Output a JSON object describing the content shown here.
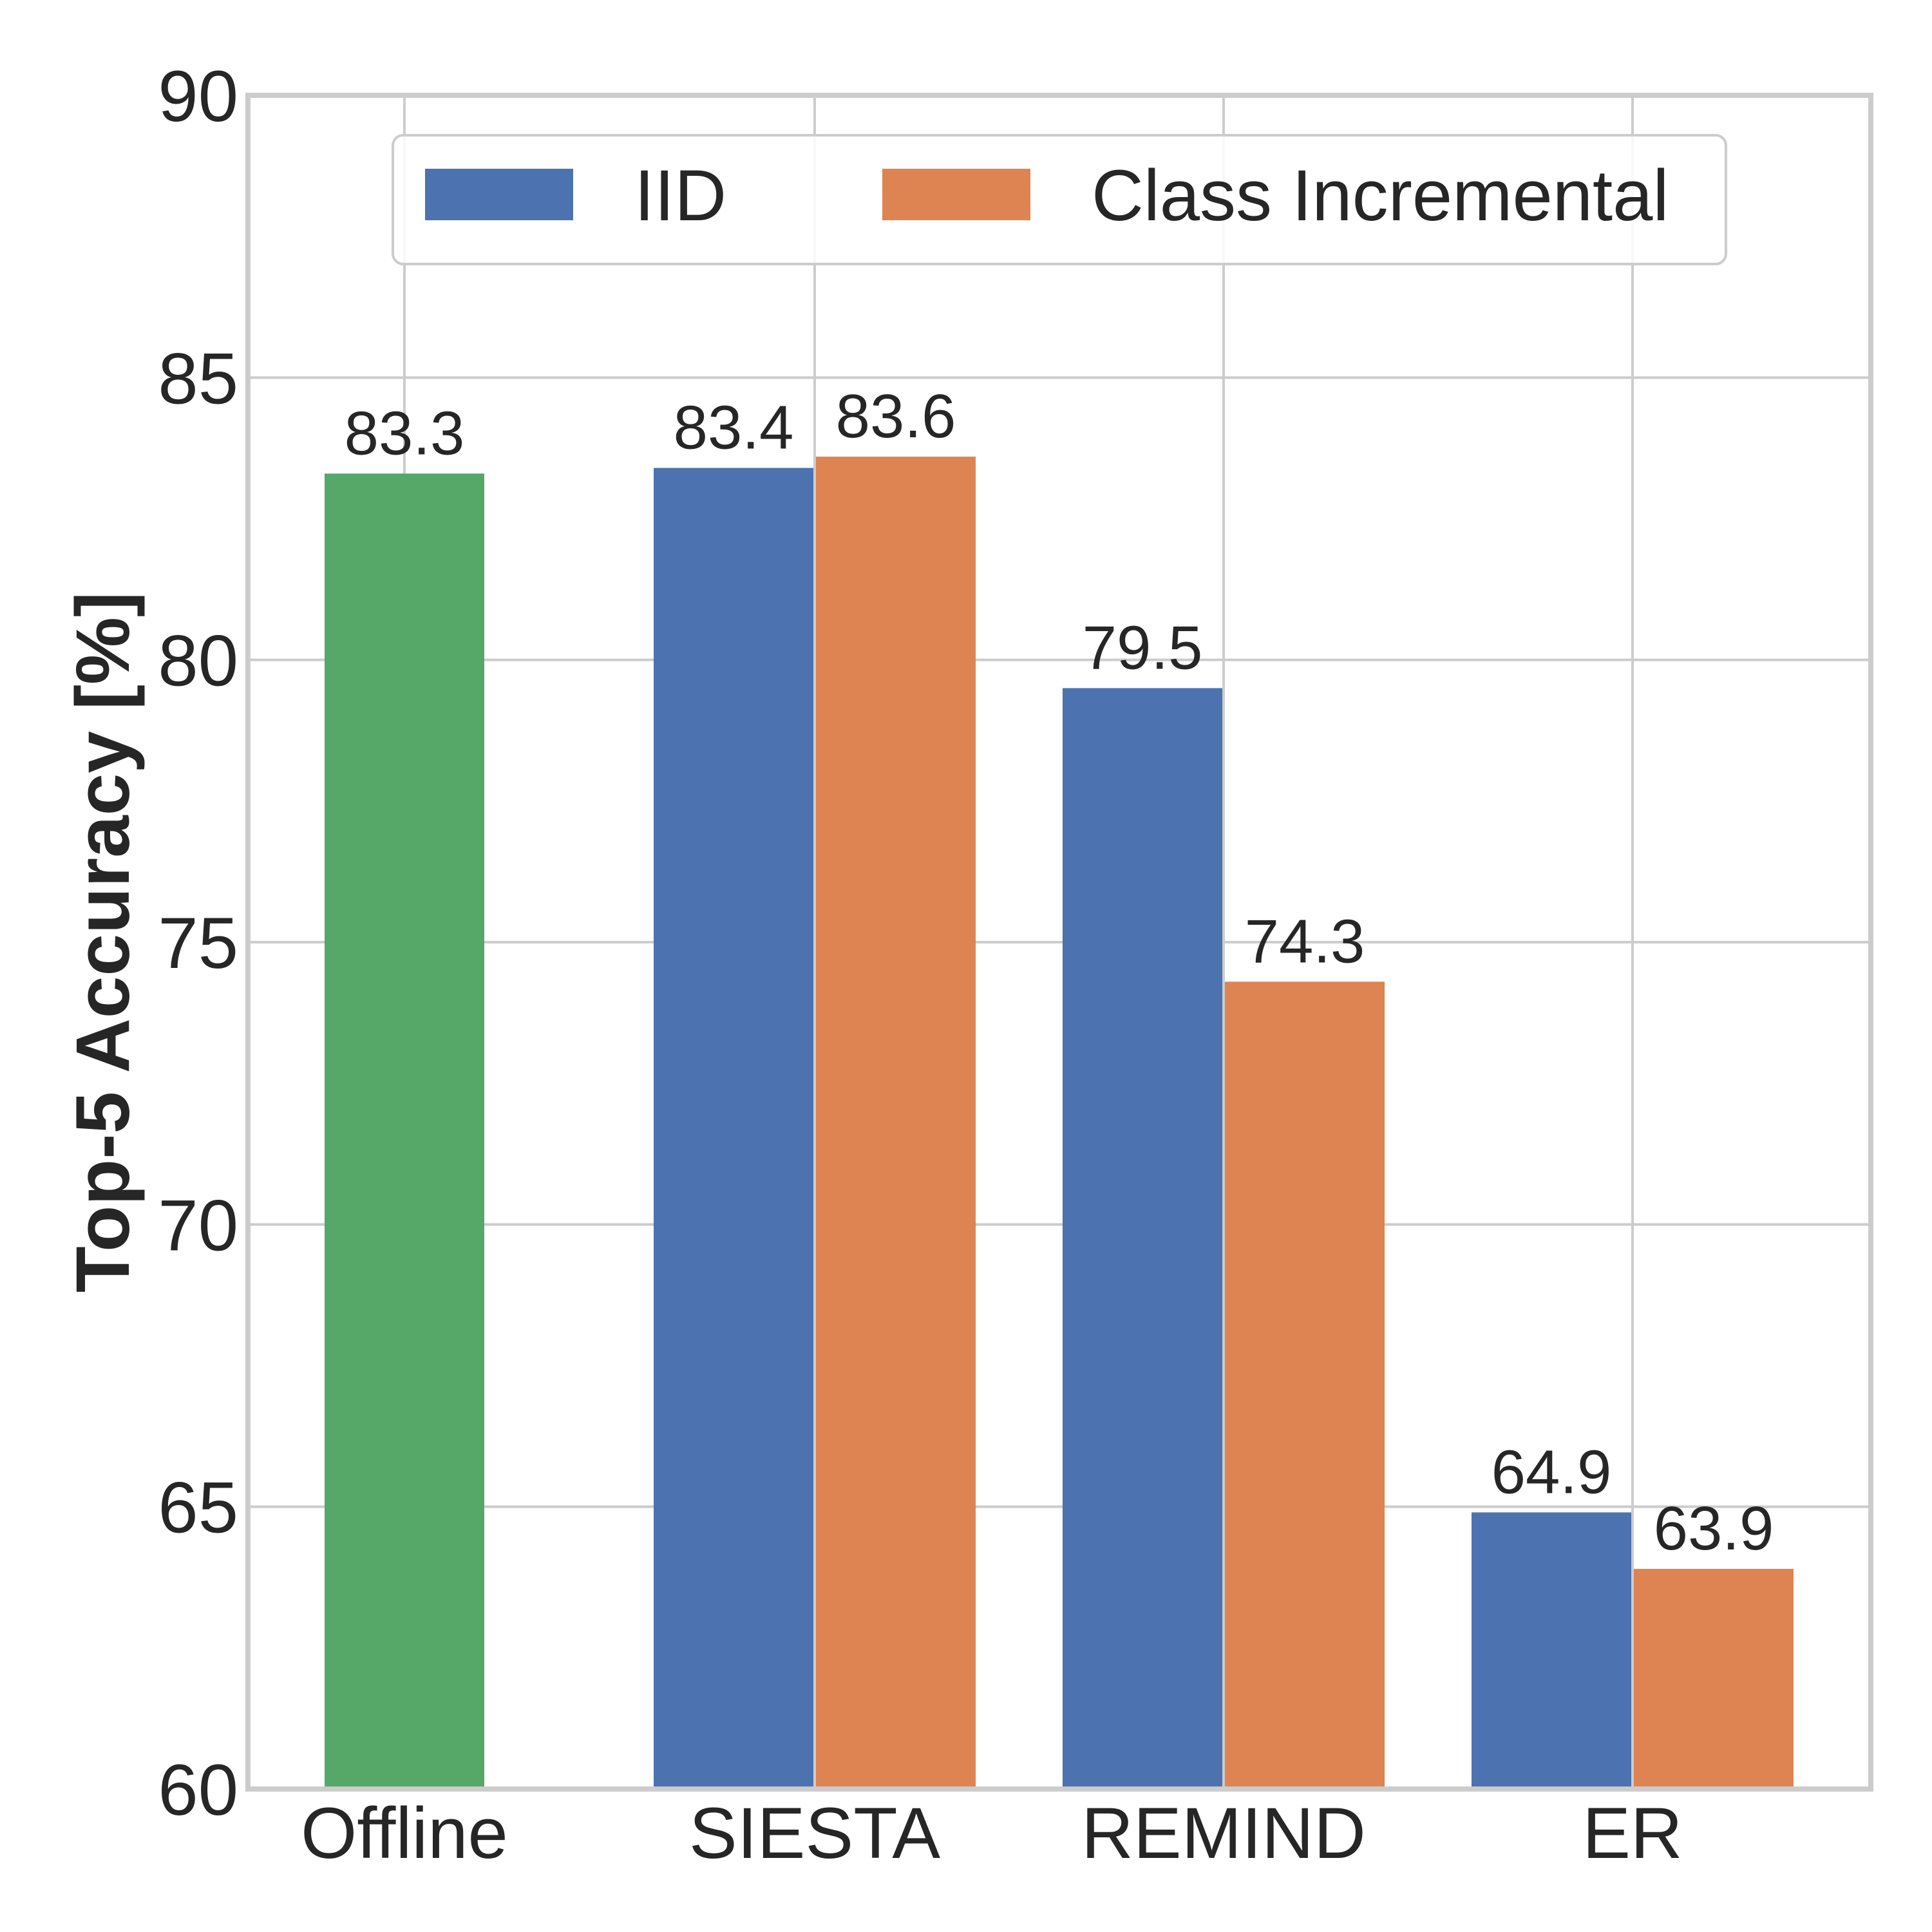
{
  "chart_data": {
    "type": "bar",
    "categories": [
      "Offline",
      "SIESTA",
      "REMIND",
      "ER"
    ],
    "series": [
      {
        "name": "",
        "key": "offline",
        "color": "#55a868",
        "values": [
          83.3,
          null,
          null,
          null
        ]
      },
      {
        "name": "IID",
        "key": "iid",
        "color": "#4c72b0",
        "values": [
          null,
          83.4,
          79.5,
          64.9
        ]
      },
      {
        "name": "Class Incremental",
        "key": "ci",
        "color": "#dd8452",
        "values": [
          null,
          83.6,
          74.3,
          63.9
        ]
      }
    ],
    "xlabel": "",
    "ylabel": "Top-5 Accuracy [%]",
    "ylim": [
      60,
      90
    ],
    "yticks": [
      60,
      65,
      70,
      75,
      80,
      85,
      90
    ],
    "grid": true,
    "legend_position": "top-center",
    "legend_entries": [
      {
        "label": "IID",
        "color": "#4c72b0"
      },
      {
        "label": "Class Incremental",
        "color": "#dd8452"
      }
    ]
  }
}
